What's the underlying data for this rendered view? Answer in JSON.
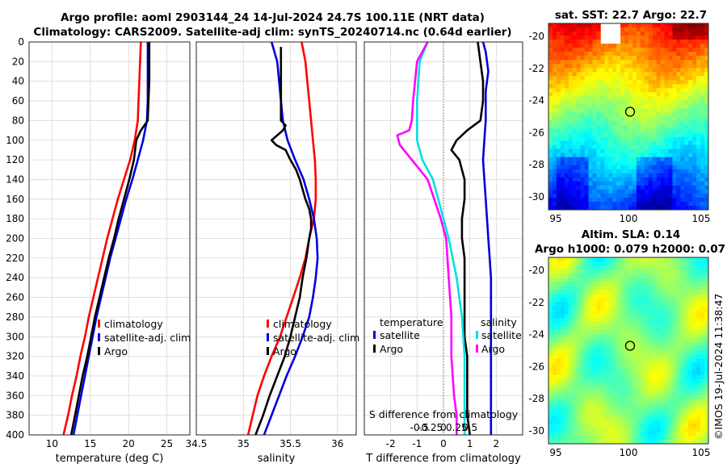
{
  "titles": {
    "main_line1": "Argo profile: aoml 2903144_24 14-Jul-2024 24.7S 100.11E (NRT data)",
    "main_line2": "Climatology: CARS2009. Satellite-adj clim: synTS_20240714.nc (0.64d earlier)",
    "sst": "sat. SST: 22.7 Argo: 22.7",
    "sla1": "Altim. SLA: 0.14",
    "sla2": "Argo h1000: 0.079 h2000: 0.07"
  },
  "timestamp": "©IMOS 19-Jul-2024 11:38:47",
  "colors": {
    "climatology": "#ff0000",
    "satellite": "#0000dd",
    "argo": "#000000",
    "temperature_diff": "#ff00ff",
    "salinity_diff": "#00e0e0"
  },
  "chart_data": [
    {
      "type": "line",
      "xlabel": "temperature (deg C)",
      "ylabel": "",
      "xlim": [
        7,
        28
      ],
      "ylim": [
        400,
        0
      ],
      "xticks": [
        "10",
        "15",
        "20",
        "25"
      ],
      "yticks": [
        "0",
        "20",
        "40",
        "60",
        "80",
        "100",
        "120",
        "140",
        "160",
        "180",
        "200",
        "220",
        "240",
        "260",
        "280",
        "300",
        "320",
        "340",
        "360",
        "380",
        "400"
      ],
      "legend": [
        "climatology",
        "satellite-adj. clim",
        "Argo"
      ],
      "series": [
        {
          "name": "climatology",
          "points": [
            [
              21.6,
              0
            ],
            [
              21.5,
              20
            ],
            [
              21.4,
              40
            ],
            [
              21.3,
              60
            ],
            [
              21.2,
              80
            ],
            [
              20.8,
              100
            ],
            [
              20.2,
              120
            ],
            [
              19.4,
              140
            ],
            [
              18.6,
              160
            ],
            [
              17.9,
              180
            ],
            [
              17.2,
              200
            ],
            [
              16.6,
              220
            ],
            [
              16.0,
              240
            ],
            [
              15.4,
              260
            ],
            [
              14.8,
              280
            ],
            [
              14.3,
              300
            ],
            [
              13.7,
              320
            ],
            [
              13.2,
              340
            ],
            [
              12.6,
              360
            ],
            [
              12.1,
              380
            ],
            [
              11.5,
              400
            ]
          ]
        },
        {
          "name": "satellite-adj. clim",
          "points": [
            [
              22.5,
              0
            ],
            [
              22.5,
              20
            ],
            [
              22.5,
              40
            ],
            [
              22.5,
              60
            ],
            [
              22.4,
              80
            ],
            [
              21.9,
              100
            ],
            [
              21.2,
              120
            ],
            [
              20.5,
              140
            ],
            [
              19.7,
              160
            ],
            [
              19.0,
              180
            ],
            [
              18.3,
              200
            ],
            [
              17.6,
              220
            ],
            [
              17.0,
              240
            ],
            [
              16.4,
              260
            ],
            [
              15.8,
              280
            ],
            [
              15.3,
              300
            ],
            [
              14.8,
              320
            ],
            [
              14.3,
              340
            ],
            [
              13.8,
              360
            ],
            [
              13.3,
              380
            ],
            [
              12.8,
              400
            ]
          ]
        },
        {
          "name": "Argo",
          "points": [
            [
              22.7,
              0
            ],
            [
              22.7,
              20
            ],
            [
              22.7,
              40
            ],
            [
              22.6,
              60
            ],
            [
              22.5,
              80
            ],
            [
              21.6,
              90
            ],
            [
              21.0,
              100
            ],
            [
              20.7,
              120
            ],
            [
              20.1,
              140
            ],
            [
              19.4,
              160
            ],
            [
              18.7,
              180
            ],
            [
              18.1,
              200
            ],
            [
              17.4,
              220
            ],
            [
              16.8,
              240
            ],
            [
              16.2,
              260
            ],
            [
              15.6,
              280
            ],
            [
              15.1,
              300
            ],
            [
              14.6,
              320
            ],
            [
              14.0,
              340
            ],
            [
              13.5,
              360
            ],
            [
              13.0,
              380
            ],
            [
              12.5,
              400
            ]
          ]
        }
      ]
    },
    {
      "type": "line",
      "xlabel": "salinity",
      "ylabel": "",
      "xlim": [
        34.5,
        36.2
      ],
      "ylim": [
        400,
        0
      ],
      "xticks": [
        "34.5",
        "35",
        "35.5",
        "36"
      ],
      "legend": [
        "climatology",
        "satellite-adj. clim",
        "Argo"
      ],
      "series": [
        {
          "name": "climatology",
          "points": [
            [
              35.62,
              0
            ],
            [
              35.66,
              20
            ],
            [
              35.68,
              40
            ],
            [
              35.7,
              60
            ],
            [
              35.72,
              80
            ],
            [
              35.74,
              100
            ],
            [
              35.76,
              120
            ],
            [
              35.77,
              140
            ],
            [
              35.77,
              160
            ],
            [
              35.75,
              180
            ],
            [
              35.7,
              200
            ],
            [
              35.66,
              220
            ],
            [
              35.6,
              240
            ],
            [
              35.53,
              260
            ],
            [
              35.46,
              280
            ],
            [
              35.39,
              300
            ],
            [
              35.3,
              320
            ],
            [
              35.22,
              340
            ],
            [
              35.15,
              360
            ],
            [
              35.1,
              380
            ],
            [
              35.05,
              400
            ]
          ]
        },
        {
          "name": "satellite-adj. clim",
          "points": [
            [
              35.3,
              0
            ],
            [
              35.33,
              10
            ],
            [
              35.36,
              20
            ],
            [
              35.38,
              40
            ],
            [
              35.4,
              60
            ],
            [
              35.42,
              80
            ],
            [
              35.47,
              100
            ],
            [
              35.55,
              120
            ],
            [
              35.64,
              140
            ],
            [
              35.7,
              160
            ],
            [
              35.75,
              180
            ],
            [
              35.78,
              200
            ],
            [
              35.79,
              220
            ],
            [
              35.77,
              240
            ],
            [
              35.74,
              260
            ],
            [
              35.7,
              280
            ],
            [
              35.63,
              300
            ],
            [
              35.55,
              320
            ],
            [
              35.46,
              340
            ],
            [
              35.38,
              360
            ],
            [
              35.3,
              380
            ],
            [
              35.22,
              400
            ]
          ]
        },
        {
          "name": "Argo",
          "points": [
            [
              35.4,
              5
            ],
            [
              35.4,
              20
            ],
            [
              35.4,
              40
            ],
            [
              35.4,
              60
            ],
            [
              35.4,
              80
            ],
            [
              35.45,
              85
            ],
            [
              35.42,
              90
            ],
            [
              35.36,
              95
            ],
            [
              35.3,
              100
            ],
            [
              35.35,
              105
            ],
            [
              35.45,
              110
            ],
            [
              35.5,
              120
            ],
            [
              35.56,
              130
            ],
            [
              35.6,
              140
            ],
            [
              35.63,
              150
            ],
            [
              35.66,
              160
            ],
            [
              35.7,
              170
            ],
            [
              35.72,
              180
            ],
            [
              35.72,
              190
            ],
            [
              35.7,
              200
            ],
            [
              35.67,
              220
            ],
            [
              35.63,
              240
            ],
            [
              35.6,
              260
            ],
            [
              35.55,
              280
            ],
            [
              35.5,
              300
            ],
            [
              35.44,
              320
            ],
            [
              35.36,
              340
            ],
            [
              35.28,
              360
            ],
            [
              35.21,
              380
            ],
            [
              35.13,
              400
            ]
          ]
        }
      ]
    },
    {
      "type": "line",
      "xlabel": "T difference from climatology",
      "ylabel": "",
      "xlim": [
        -3,
        3
      ],
      "ylim": [
        400,
        0
      ],
      "xticks": [
        "-2",
        "-1",
        "0",
        "1",
        "2"
      ],
      "secondary_xlabel": "S difference from climatology",
      "secondary_xticks": [
        "-0.5",
        "-0.25",
        "0",
        "0.25",
        "0.5"
      ],
      "legend_groups": {
        "temperature": [
          "satellite",
          "Argo"
        ],
        "salinity": [
          "satellite",
          "Argo"
        ]
      },
      "series": [
        {
          "name": "temperature satellite",
          "points": [
            [
              1.5,
              0
            ],
            [
              1.6,
              10
            ],
            [
              1.7,
              30
            ],
            [
              1.6,
              50
            ],
            [
              1.6,
              80
            ],
            [
              1.55,
              100
            ],
            [
              1.5,
              120
            ],
            [
              1.55,
              140
            ],
            [
              1.6,
              160
            ],
            [
              1.65,
              180
            ],
            [
              1.7,
              200
            ],
            [
              1.75,
              220
            ],
            [
              1.8,
              240
            ],
            [
              1.8,
              260
            ],
            [
              1.8,
              280
            ],
            [
              1.8,
              300
            ],
            [
              1.8,
              320
            ],
            [
              1.8,
              340
            ],
            [
              1.8,
              360
            ],
            [
              1.8,
              380
            ],
            [
              1.8,
              400
            ]
          ]
        },
        {
          "name": "temperature Argo",
          "points": [
            [
              1.3,
              0
            ],
            [
              1.4,
              20
            ],
            [
              1.5,
              40
            ],
            [
              1.5,
              60
            ],
            [
              1.4,
              80
            ],
            [
              0.9,
              90
            ],
            [
              0.5,
              100
            ],
            [
              0.3,
              110
            ],
            [
              0.6,
              120
            ],
            [
              0.8,
              140
            ],
            [
              0.8,
              160
            ],
            [
              0.7,
              180
            ],
            [
              0.7,
              200
            ],
            [
              0.8,
              220
            ],
            [
              0.8,
              240
            ],
            [
              0.8,
              260
            ],
            [
              0.8,
              280
            ],
            [
              0.8,
              300
            ],
            [
              0.9,
              320
            ],
            [
              0.9,
              340
            ],
            [
              0.9,
              360
            ],
            [
              0.9,
              380
            ],
            [
              1.0,
              400
            ]
          ]
        },
        {
          "name": "salinity satellite",
          "points": [
            [
              -0.6,
              0
            ],
            [
              -0.9,
              20
            ],
            [
              -1.0,
              60
            ],
            [
              -1.0,
              100
            ],
            [
              -0.8,
              120
            ],
            [
              -0.4,
              140
            ],
            [
              0.0,
              180
            ],
            [
              0.2,
              200
            ],
            [
              0.5,
              240
            ],
            [
              0.7,
              280
            ],
            [
              0.8,
              320
            ],
            [
              0.8,
              360
            ],
            [
              0.8,
              400
            ]
          ]
        },
        {
          "name": "salinity Argo",
          "points": [
            [
              -0.6,
              0
            ],
            [
              -1.0,
              20
            ],
            [
              -1.15,
              60
            ],
            [
              -1.2,
              80
            ],
            [
              -1.3,
              90
            ],
            [
              -1.75,
              95
            ],
            [
              -1.65,
              105
            ],
            [
              -1.2,
              120
            ],
            [
              -0.6,
              140
            ],
            [
              -0.1,
              180
            ],
            [
              0.1,
              200
            ],
            [
              0.2,
              240
            ],
            [
              0.3,
              280
            ],
            [
              0.3,
              320
            ],
            [
              0.4,
              360
            ],
            [
              0.5,
              380
            ],
            [
              0.5,
              400
            ]
          ]
        }
      ]
    },
    {
      "type": "heatmap",
      "title": "sat. SST: 22.7 Argo: 22.7",
      "xlim": [
        94.5,
        105.5
      ],
      "ylim": [
        -30.8,
        -19.2
      ],
      "xticks": [
        "95",
        "100",
        "105"
      ],
      "yticks": [
        "-20",
        "-22",
        "-24",
        "-26",
        "-28",
        "-30"
      ],
      "marker": {
        "lon": 100.11,
        "lat": -24.7
      }
    },
    {
      "type": "heatmap",
      "title": "Altim. SLA: 0.14 / Argo h1000: 0.079 h2000: 0.07",
      "xlim": [
        94.5,
        105.5
      ],
      "ylim": [
        -30.8,
        -19.2
      ],
      "xticks": [
        "95",
        "100",
        "105"
      ],
      "yticks": [
        "-20",
        "-22",
        "-24",
        "-26",
        "-28",
        "-30"
      ],
      "marker": {
        "lon": 100.11,
        "lat": -24.7
      }
    }
  ]
}
